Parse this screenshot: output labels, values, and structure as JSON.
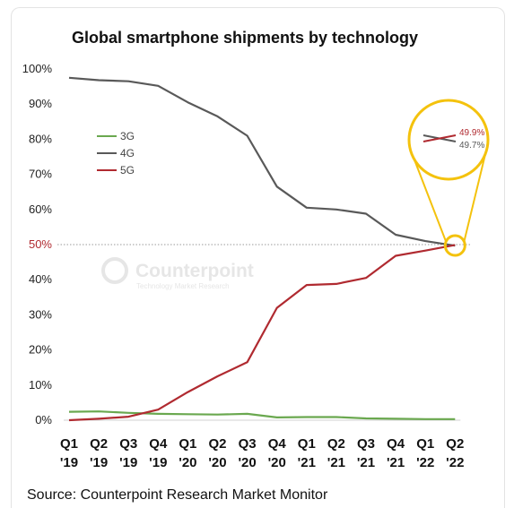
{
  "chart_data": {
    "type": "line",
    "title": "Global smartphone shipments by technology",
    "categories": [
      "Q1 '19",
      "Q2 '19",
      "Q3 '19",
      "Q4 '19",
      "Q1 '20",
      "Q2 '20",
      "Q3 '20",
      "Q4 '20",
      "Q1 '21",
      "Q2 '21",
      "Q3 '21",
      "Q4 '21",
      "Q1 '22",
      "Q2 '22"
    ],
    "category_labels": [
      [
        "Q1",
        "'19"
      ],
      [
        "Q2",
        "'19"
      ],
      [
        "Q3",
        "'19"
      ],
      [
        "Q4",
        "'19"
      ],
      [
        "Q1",
        "'20"
      ],
      [
        "Q2",
        "'20"
      ],
      [
        "Q3",
        "'20"
      ],
      [
        "Q4",
        "'20"
      ],
      [
        "Q1",
        "'21"
      ],
      [
        "Q2",
        "'21"
      ],
      [
        "Q3",
        "'21"
      ],
      [
        "Q4",
        "'21"
      ],
      [
        "Q1",
        "'22"
      ],
      [
        "Q2",
        "'22"
      ]
    ],
    "ylim": [
      0,
      100
    ],
    "yticks": [
      "0%",
      "10%",
      "20%",
      "30%",
      "40%",
      "50%",
      "60%",
      "70%",
      "80%",
      "90%",
      "100%"
    ],
    "reference_line": {
      "y": 50,
      "label": "50%",
      "style": "dotted"
    },
    "legend_position": "upper-left",
    "series": [
      {
        "name": "3G",
        "color": "#6aa84f",
        "values": [
          2.4,
          2.5,
          2.1,
          1.8,
          1.7,
          1.6,
          1.8,
          0.8,
          0.9,
          0.9,
          0.5,
          0.4,
          0.3,
          0.3
        ]
      },
      {
        "name": "4G",
        "color": "#595959",
        "values": [
          97.5,
          96.8,
          96.5,
          95.2,
          90.5,
          86.5,
          81.0,
          66.5,
          60.5,
          60.0,
          58.8,
          52.8,
          51.0,
          49.7
        ]
      },
      {
        "name": "5G",
        "color": "#b02a30",
        "values": [
          0.0,
          0.4,
          1.0,
          3.0,
          8.0,
          12.5,
          16.5,
          32.0,
          38.5,
          38.8,
          40.5,
          46.8,
          48.3,
          49.9
        ]
      }
    ],
    "callout": {
      "color": "#f4c20d",
      "labels": [
        "49.9%",
        "49.7%"
      ],
      "label_colors": [
        "#b02a30",
        "#595959"
      ]
    },
    "watermark": {
      "name": "Counterpoint",
      "tagline": "Technology Market Research"
    },
    "source": "Source: Counterpoint Research Market Monitor"
  }
}
